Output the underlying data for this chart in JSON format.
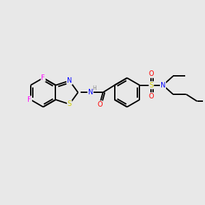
{
  "bg_color": "#e8e8e8",
  "bond_color": "#000000",
  "bond_lw": 1.4,
  "atom_colors": {
    "F": "#ff00ff",
    "N": "#0000ff",
    "S": "#cccc00",
    "O": "#ff0000",
    "H": "#888888",
    "C": "#000000"
  },
  "font_size": 7.0,
  "fig_size": [
    3.0,
    3.0
  ],
  "dpi": 100
}
